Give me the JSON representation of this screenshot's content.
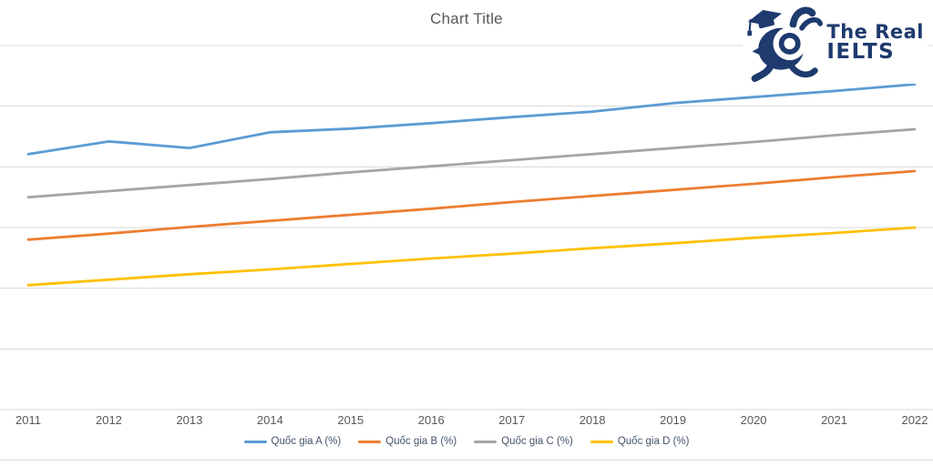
{
  "chart_data": {
    "type": "line",
    "title": "Chart Title",
    "x": [
      2011,
      2012,
      2013,
      2014,
      2015,
      2016,
      2017,
      2018,
      2019,
      2020,
      2021,
      2022
    ],
    "series": [
      {
        "name": "Quốc gia A (%)",
        "color": "#5B9BD5",
        "values": [
          42.1,
          44.2,
          43.1,
          45.7,
          46.3,
          47.2,
          48.2,
          49.1,
          50.5,
          51.5,
          52.5,
          53.6
        ]
      },
      {
        "name": "Quốc gia B (%)",
        "color": "#ED7D31",
        "values": [
          28.0,
          29.0,
          30.1,
          31.1,
          32.1,
          33.1,
          34.2,
          35.2,
          36.2,
          37.2,
          38.3,
          39.3
        ]
      },
      {
        "name": "Quốc gia C (%)",
        "color": "#A5A5A5",
        "values": [
          35.0,
          36.0,
          37.0,
          38.0,
          39.1,
          40.1,
          41.1,
          42.1,
          43.1,
          44.1,
          45.2,
          46.2
        ]
      },
      {
        "name": "Quốc gia D (%)",
        "color": "#FFC000",
        "values": [
          20.5,
          21.4,
          22.3,
          23.1,
          24.0,
          24.9,
          25.7,
          26.6,
          27.4,
          28.3,
          29.1,
          30.0
        ]
      }
    ],
    "xlabel": "",
    "ylabel": "",
    "ylim": [
      0,
      60
    ],
    "grid_step": 10,
    "grid": "horizontal-only",
    "y_tick_labels_visible": false,
    "legend_position": "bottom-center"
  },
  "logo": {
    "line1": "The Real",
    "line2": "IELTS",
    "color": "#1E3A6E",
    "icon": "owl-graduate-mascot"
  },
  "colors": {
    "background": "#FFFFFF",
    "gridline": "#D9D9D9",
    "title_text": "#595959",
    "axis_text": "#595959",
    "legend_text": "#44546A"
  }
}
